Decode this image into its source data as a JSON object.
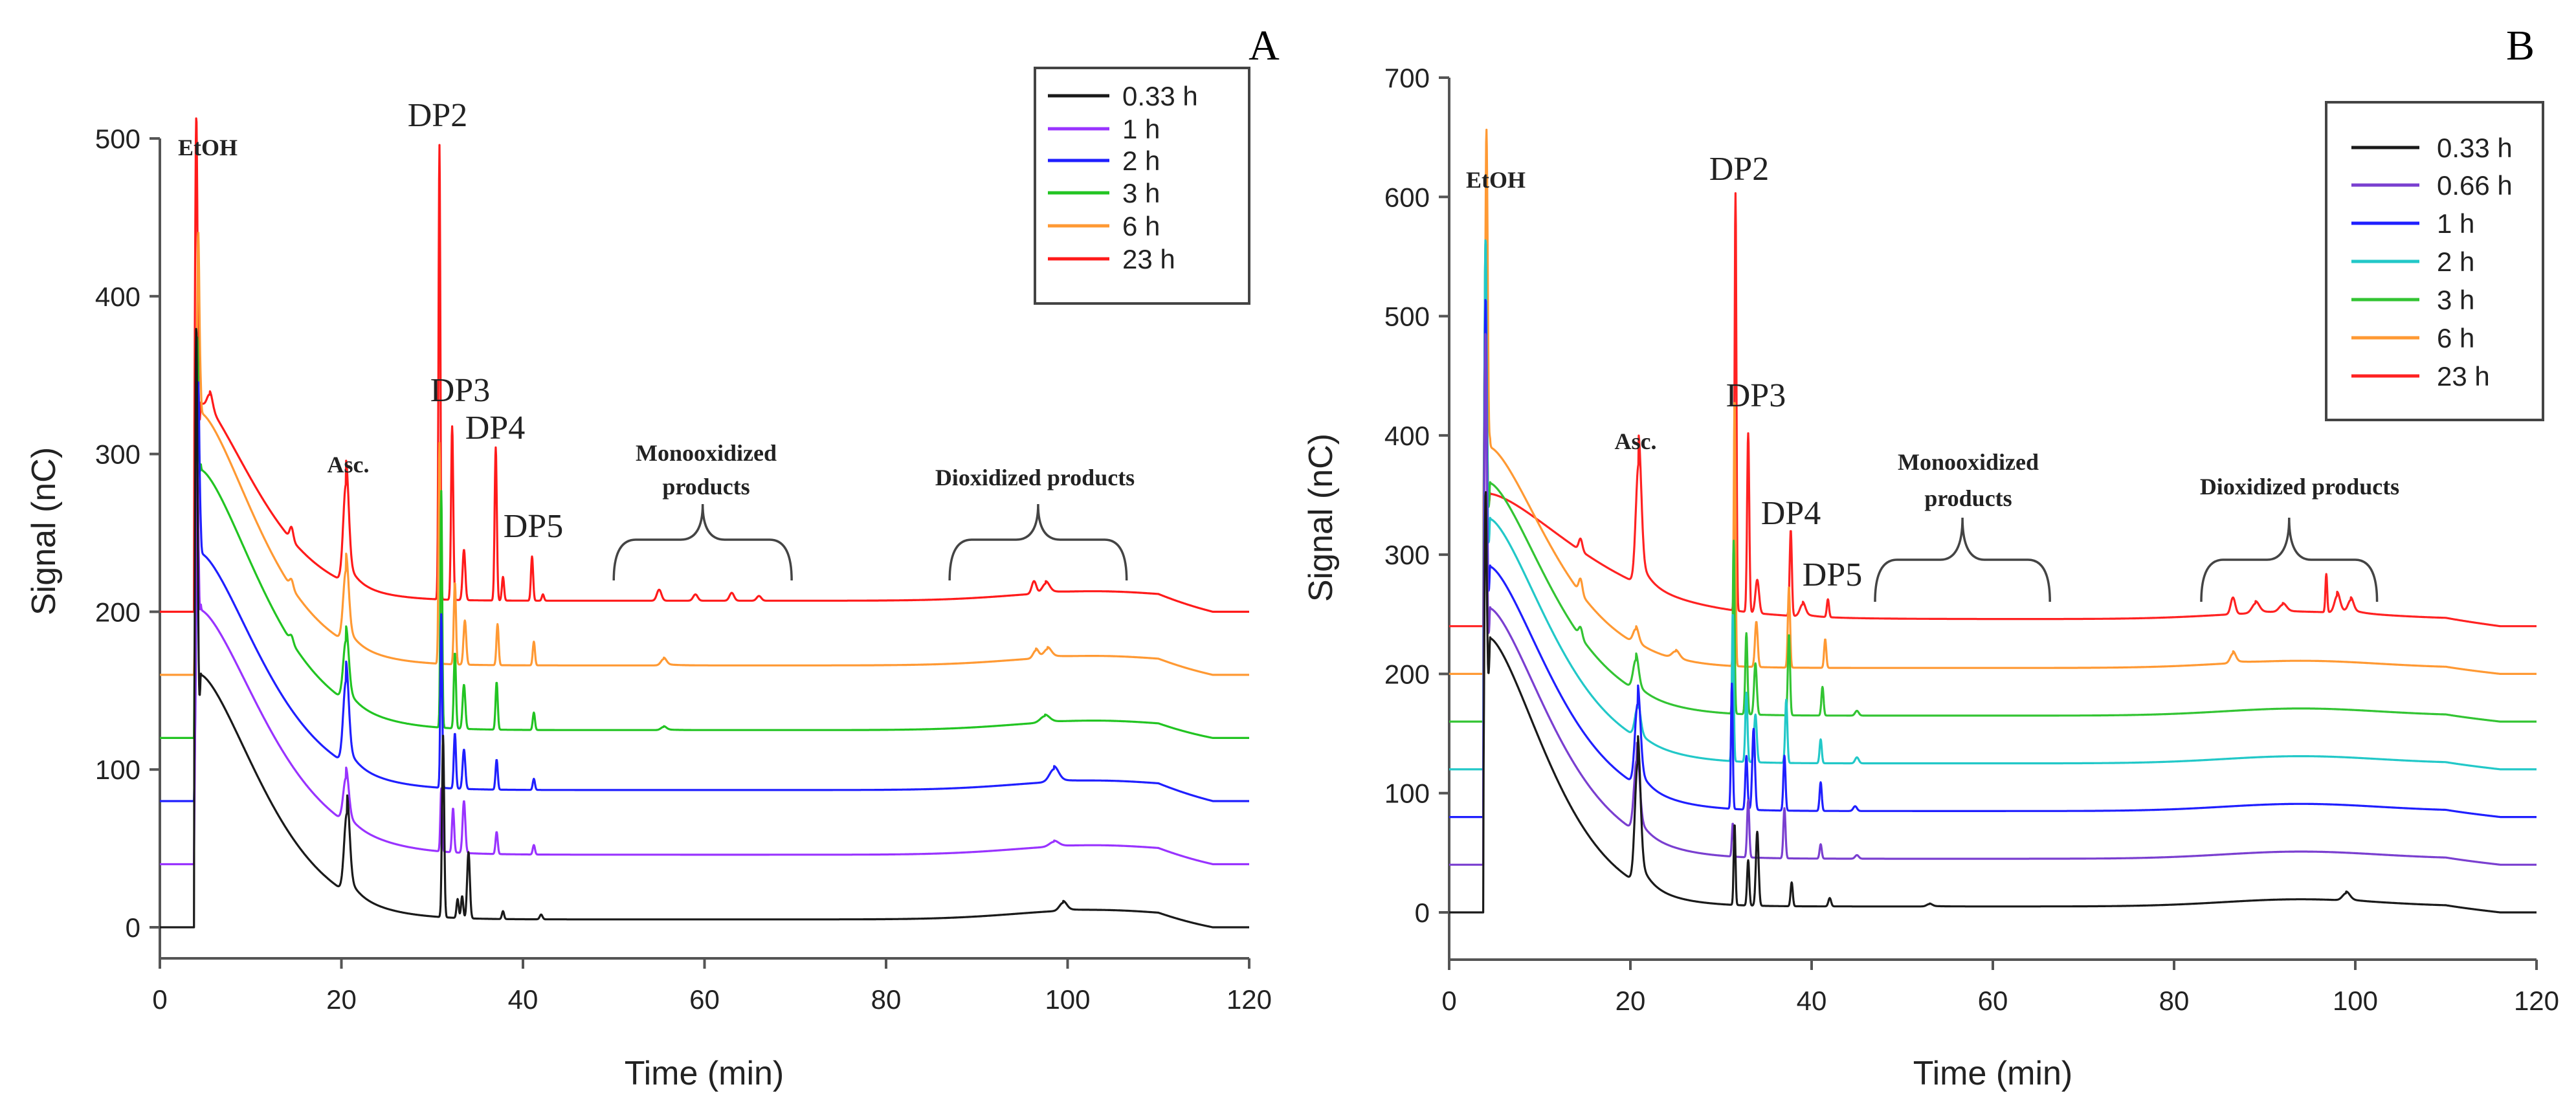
{
  "chart_data": [
    {
      "type": "line",
      "panel_label": "A",
      "title": "",
      "xlabel": "Time (min)",
      "ylabel": "Signal (nC)",
      "xlim": [
        0,
        120
      ],
      "ylim": [
        0,
        500
      ],
      "xticks": [
        "0",
        "20",
        "40",
        "60",
        "80",
        "100",
        "120"
      ],
      "yticks": [
        "0",
        "100",
        "200",
        "300",
        "400",
        "500"
      ],
      "grid": false,
      "legend_position": "top-right",
      "annotations": [
        "EtOH",
        "DP2",
        "DP3",
        "DP4",
        "DP5",
        "Asc.",
        "Monooxidized",
        "products",
        "Dioxidized products"
      ],
      "brackets": [
        {
          "label": "Monooxidized products",
          "x_range": [
            50,
            69.6
          ]
        },
        {
          "label": "Dioxidized products",
          "x_range": [
            87,
            106.5
          ]
        }
      ],
      "late_hump": {
        "center": 103,
        "width": 12,
        "height": 6,
        "drop_start": 110,
        "drop_end": 116
      },
      "series": [
        {
          "name": "0.33 h",
          "color": "#1a1a1a",
          "offset": 0,
          "decay": {
            "amp": 155,
            "tau": 9.5
          },
          "floor": 5,
          "peaks": [
            [
              4.0,
              330,
              0.15
            ],
            [
              20.6,
              50,
              0.3
            ],
            [
              31.2,
              115,
              0.12
            ],
            [
              32.8,
              12,
              0.12
            ],
            [
              33.3,
              14,
              0.12
            ],
            [
              34.0,
              42,
              0.15
            ],
            [
              37.8,
              5,
              0.12
            ],
            [
              42,
              3,
              0.15
            ],
            [
              99.5,
              5,
              0.4
            ]
          ]
        },
        {
          "name": "1 h",
          "color": "#9933ff",
          "offset": 40,
          "decay": {
            "amp": 155,
            "tau": 10
          },
          "floor": 6,
          "peaks": [
            [
              4.1,
              180,
              0.15
            ],
            [
              20.5,
              28,
              0.3
            ],
            [
              31.0,
              40,
              0.1
            ],
            [
              32.3,
              28,
              0.12
            ],
            [
              33.5,
              33,
              0.15
            ],
            [
              37.1,
              14,
              0.12
            ],
            [
              41.2,
              6,
              0.12
            ],
            [
              98.5,
              3,
              0.5
            ]
          ]
        },
        {
          "name": "2 h",
          "color": "#1f1fff",
          "offset": 80,
          "decay": {
            "amp": 150,
            "tau": 9.5
          },
          "floor": 7,
          "peaks": [
            [
              4.2,
              170,
              0.15
            ],
            [
              20.5,
              52,
              0.3
            ],
            [
              31.0,
              110,
              0.1
            ],
            [
              32.5,
              35,
              0.12
            ],
            [
              33.5,
              25,
              0.15
            ],
            [
              37.1,
              19,
              0.12
            ],
            [
              41.2,
              7,
              0.12
            ],
            [
              98.5,
              8,
              0.5
            ]
          ]
        },
        {
          "name": "3 h",
          "color": "#22c422",
          "offset": 120,
          "decay": {
            "amp": 165,
            "tau": 9.5
          },
          "floor": 5,
          "peaks": [
            [
              4.1,
              175,
              0.15
            ],
            [
              14.5,
              4,
              0.2
            ],
            [
              20.5,
              38,
              0.3
            ],
            [
              31.0,
              150,
              0.1
            ],
            [
              32.5,
              48,
              0.12
            ],
            [
              33.5,
              28,
              0.15
            ],
            [
              37.1,
              30,
              0.12
            ],
            [
              41.2,
              11,
              0.12
            ],
            [
              55.5,
              2,
              0.3
            ],
            [
              97.5,
              4,
              0.5
            ]
          ]
        },
        {
          "name": "6 h",
          "color": "#ff9933",
          "offset": 160,
          "decay": {
            "amp": 160,
            "tau": 9
          },
          "floor": 6,
          "peaks": [
            [
              4.2,
              180,
              0.15
            ],
            [
              14.5,
              5,
              0.2
            ],
            [
              20.5,
              45,
              0.3
            ],
            [
              30.8,
              140,
              0.1
            ],
            [
              32.5,
              52,
              0.12
            ],
            [
              33.6,
              28,
              0.15
            ],
            [
              37.2,
              26,
              0.12
            ],
            [
              41.2,
              15,
              0.12
            ],
            [
              55.5,
              4,
              0.3
            ],
            [
              96.5,
              5,
              0.3
            ],
            [
              97.8,
              5,
              0.4
            ]
          ]
        },
        {
          "name": "23 h",
          "color": "#ff1a1a",
          "offset": 200,
          "decay": {
            "amp": 125,
            "tau": 9
          },
          "floor": 7,
          "peaks": [
            [
              4.0,
              270,
              0.15
            ],
            [
              5.5,
              10,
              0.3
            ],
            [
              14.5,
              8,
              0.2
            ],
            [
              20.5,
              62,
              0.3
            ],
            [
              30.8,
              288,
              0.1
            ],
            [
              32.2,
              110,
              0.12
            ],
            [
              33.5,
              32,
              0.15
            ],
            [
              37.0,
              97,
              0.12
            ],
            [
              37.8,
              15,
              0.12
            ],
            [
              41.0,
              28,
              0.12
            ],
            [
              42.2,
              4,
              0.12
            ],
            [
              55.0,
              7,
              0.25
            ],
            [
              59.0,
              4,
              0.25
            ],
            [
              63.0,
              5,
              0.25
            ],
            [
              66.0,
              3,
              0.25
            ],
            [
              96.3,
              8,
              0.25
            ],
            [
              97.6,
              6,
              0.4
            ]
          ]
        }
      ]
    },
    {
      "type": "line",
      "panel_label": "B",
      "title": "",
      "xlabel": "Time (min)",
      "ylabel": "Signal (nC)",
      "xlim": [
        0,
        120
      ],
      "ylim": [
        0,
        700
      ],
      "xticks": [
        "0",
        "20",
        "40",
        "60",
        "80",
        "100",
        "120"
      ],
      "yticks": [
        "0",
        "100",
        "200",
        "300",
        "400",
        "500",
        "600",
        "700"
      ],
      "grid": false,
      "legend_position": "top-right",
      "annotations": [
        "EtOH",
        "DP2",
        "DP3",
        "DP4",
        "DP5",
        "Asc.",
        "Monooxidized",
        "products",
        "Dioxidized products"
      ],
      "brackets": [
        {
          "label": "Monooxidized products",
          "x_range": [
            47,
            66.3
          ]
        },
        {
          "label": "Dioxidized products",
          "x_range": [
            83,
            102.4
          ]
        }
      ],
      "late_hump": {
        "center": 94,
        "width": 12,
        "height": 6,
        "drop_start": 110,
        "drop_end": 116
      },
      "series": [
        {
          "name": "0.33 h",
          "color": "#1a1a1a",
          "offset": 0,
          "decay": {
            "amp": 225,
            "tau": 9
          },
          "floor": 5,
          "peaks": [
            [
              4.0,
              280,
              0.15
            ],
            [
              20.8,
              100,
              0.3
            ],
            [
              31.5,
              68,
              0.1
            ],
            [
              33.0,
              38,
              0.12
            ],
            [
              34.0,
              62,
              0.15
            ],
            [
              37.8,
              20,
              0.12
            ],
            [
              42.0,
              7,
              0.15
            ],
            [
              53,
              2,
              0.3
            ],
            [
              99.0,
              6,
              0.4
            ]
          ]
        },
        {
          "name": "0.66 h",
          "color": "#7a3fd0",
          "offset": 40,
          "decay": {
            "amp": 210,
            "tau": 9.5
          },
          "floor": 5,
          "peaks": [
            [
              4.0,
              380,
              0.15
            ],
            [
              20.7,
              60,
              0.3
            ],
            [
              31.3,
              28,
              0.1
            ],
            [
              33.0,
              48,
              0.12
            ],
            [
              37.0,
              42,
              0.12
            ],
            [
              41.0,
              12,
              0.12
            ],
            [
              45,
              3,
              0.2
            ]
          ]
        },
        {
          "name": "1 h",
          "color": "#1f1fff",
          "offset": 80,
          "decay": {
            "amp": 205,
            "tau": 9.5
          },
          "floor": 5,
          "peaks": [
            [
              4.0,
              370,
              0.15
            ],
            [
              20.8,
              68,
              0.3
            ],
            [
              31.2,
              105,
              0.1
            ],
            [
              32.8,
              45,
              0.12
            ],
            [
              33.6,
              68,
              0.15
            ],
            [
              37.0,
              46,
              0.12
            ],
            [
              41.0,
              24,
              0.12
            ],
            [
              44.8,
              4,
              0.2
            ]
          ]
        },
        {
          "name": "2 h",
          "color": "#22c8c8",
          "offset": 120,
          "decay": {
            "amp": 205,
            "tau": 9.5
          },
          "floor": 5,
          "peaks": [
            [
              4.0,
              380,
              0.15
            ],
            [
              20.8,
              25,
              0.3
            ],
            [
              31.3,
              125,
              0.1
            ],
            [
              32.8,
              58,
              0.12
            ],
            [
              33.8,
              40,
              0.15
            ],
            [
              37.2,
              53,
              0.12
            ],
            [
              41.0,
              20,
              0.12
            ],
            [
              45,
              5,
              0.2
            ]
          ]
        },
        {
          "name": "3 h",
          "color": "#33c433",
          "offset": 160,
          "decay": {
            "amp": 195,
            "tau": 9.5
          },
          "floor": 5,
          "peaks": [
            [
              4.0,
              340,
              0.15
            ],
            [
              14.5,
              8,
              0.2
            ],
            [
              20.6,
              25,
              0.3
            ],
            [
              31.4,
              145,
              0.1
            ],
            [
              32.8,
              68,
              0.12
            ],
            [
              33.8,
              43,
              0.15
            ],
            [
              37.5,
              68,
              0.12
            ],
            [
              41.2,
              24,
              0.12
            ],
            [
              45,
              4,
              0.2
            ]
          ]
        },
        {
          "name": "6 h",
          "color": "#ff9933",
          "offset": 200,
          "decay": {
            "amp": 185,
            "tau": 9.5
          },
          "floor": 5,
          "peaks": [
            [
              4.1,
              370,
              0.15
            ],
            [
              14.5,
              12,
              0.2
            ],
            [
              20.6,
              12,
              0.3
            ],
            [
              25,
              6,
              0.4
            ],
            [
              31.5,
              225,
              0.1
            ],
            [
              33.9,
              38,
              0.15
            ],
            [
              37.5,
              68,
              0.12
            ],
            [
              41.5,
              24,
              0.12
            ],
            [
              86.5,
              8,
              0.3
            ]
          ]
        },
        {
          "name": "23 h",
          "color": "#ff2222",
          "offset": 240,
          "decay": {
            "amp": 105,
            "tau": 14
          },
          "floor": 6,
          "peaks": [
            [
              4.0,
              245,
              0.15
            ],
            [
              14.5,
              10,
              0.2
            ],
            [
              20.9,
              100,
              0.3
            ],
            [
              31.6,
              350,
              0.1
            ],
            [
              33.0,
              150,
              0.12
            ],
            [
              34.0,
              28,
              0.2
            ],
            [
              37.7,
              72,
              0.12
            ],
            [
              39,
              10,
              0.3
            ],
            [
              41.8,
              15,
              0.12
            ],
            [
              86.5,
              14,
              0.25
            ],
            [
              89,
              8,
              0.4
            ],
            [
              92,
              6,
              0.4
            ],
            [
              96.8,
              32,
              0.1
            ],
            [
              98,
              14,
              0.3
            ],
            [
              99.5,
              10,
              0.3
            ]
          ]
        }
      ]
    }
  ]
}
